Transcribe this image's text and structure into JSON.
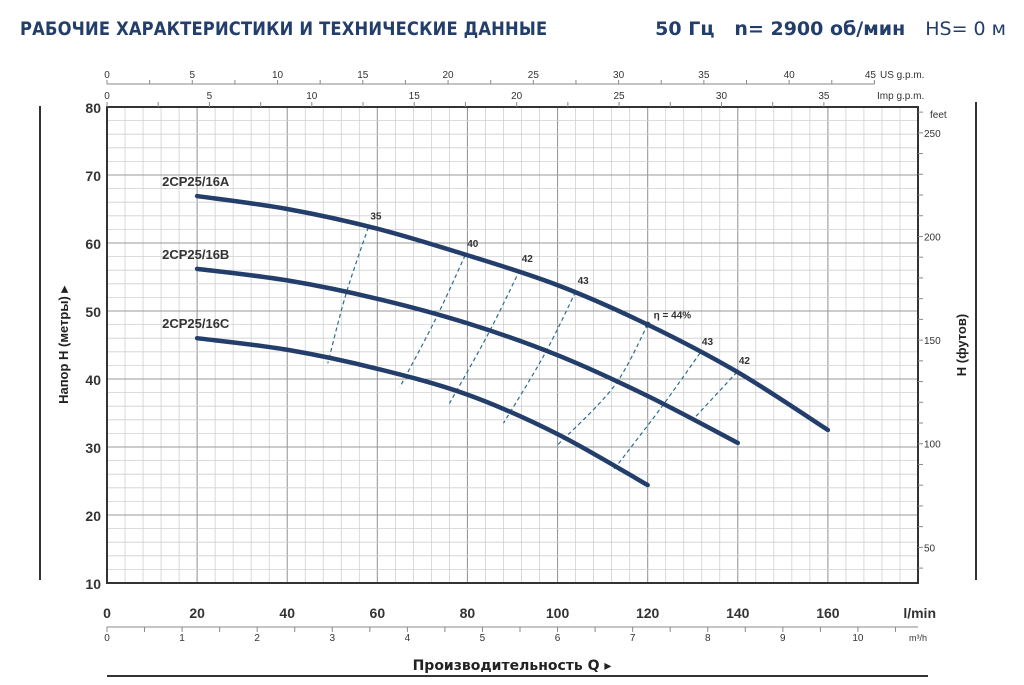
{
  "header": {
    "title": "РАБОЧИЕ ХАРАКТЕРИСТИКИ И ТЕХНИЧЕСКИЕ ДАННЫЕ",
    "frequency": "50 Гц",
    "speed": "n= 2900 об/мин",
    "hs": "HS= 0 м"
  },
  "colors": {
    "curve": "#233e6b",
    "efficiency": "#2a6e8c",
    "grid_minor": "#d0d0d0",
    "grid_major": "#9a9a9a",
    "frame": "#333333",
    "title": "#233e6b"
  },
  "chart_data": {
    "type": "line",
    "title": "РАБОЧИЕ ХАРАКТЕРИСТИКИ И ТЕХНИЧЕСКИЕ ДАННЫЕ",
    "xlabel": "Производительность Q",
    "ylabel": "Напор H (метры)",
    "ylabel_right": "H (футов)",
    "xlim": [
      0,
      180
    ],
    "ylim": [
      10,
      80
    ],
    "grid": true,
    "x_unit": "l/min",
    "x_ticks": [
      0,
      20,
      40,
      60,
      80,
      100,
      120,
      140,
      160
    ],
    "y_ticks": [
      10,
      20,
      30,
      40,
      50,
      60,
      70,
      80
    ],
    "secondary_axes": {
      "m3h": {
        "unit": "m³/h",
        "ticks": [
          0,
          1,
          2,
          3,
          4,
          5,
          6,
          7,
          8,
          9,
          10
        ]
      },
      "us_gpm": {
        "unit": "US g.p.m.",
        "ticks": [
          0,
          5,
          10,
          15,
          20,
          25,
          30,
          35,
          40,
          45
        ]
      },
      "imp_gpm": {
        "unit": "Imp g.p.m.",
        "ticks": [
          0,
          5,
          10,
          15,
          20,
          25,
          30,
          35
        ]
      },
      "feet": {
        "unit": "feet",
        "ticks": [
          50,
          100,
          150,
          200,
          250
        ]
      }
    },
    "series": [
      {
        "name": "2CP25/16A",
        "x": [
          20,
          40,
          60,
          80,
          100,
          120,
          140,
          160
        ],
        "values": [
          66.9,
          65.0,
          62.1,
          58.2,
          53.8,
          48.0,
          41.0,
          32.5
        ]
      },
      {
        "name": "2CP25/16B",
        "x": [
          20,
          40,
          60,
          80,
          100,
          120,
          140
        ],
        "values": [
          56.2,
          54.5,
          51.8,
          48.2,
          43.5,
          37.5,
          30.6
        ]
      },
      {
        "name": "2CP25/16C",
        "x": [
          20,
          40,
          60,
          80,
          100,
          120
        ],
        "values": [
          46.0,
          44.3,
          41.5,
          37.7,
          31.9,
          24.4
        ]
      }
    ],
    "efficiency_lines": [
      {
        "label": "35",
        "points": [
          [
            58,
            62.3
          ],
          [
            53,
            52.4
          ],
          [
            49,
            42.3
          ]
        ]
      },
      {
        "label": "40",
        "points": [
          [
            79.5,
            58.2
          ],
          [
            73,
            48.9
          ],
          [
            65,
            38.8
          ]
        ]
      },
      {
        "label": "42",
        "points": [
          [
            91.6,
            56.0
          ],
          [
            84.5,
            46.5
          ],
          [
            76,
            36.4
          ]
        ]
      },
      {
        "label": "43",
        "points": [
          [
            104,
            52.8
          ],
          [
            97,
            43.5
          ],
          [
            88,
            33.5
          ]
        ]
      },
      {
        "label": "η = 44%",
        "points": [
          [
            120,
            48.0
          ],
          [
            112.5,
            38.9
          ],
          [
            100,
            30.3
          ]
        ]
      },
      {
        "label": "43",
        "points": [
          [
            131.6,
            43.8
          ],
          [
            123,
            35.8
          ],
          [
            112.5,
            26.7
          ]
        ]
      },
      {
        "label": "42",
        "points": [
          [
            139.8,
            41.0
          ],
          [
            130,
            34.0
          ]
        ]
      }
    ]
  }
}
